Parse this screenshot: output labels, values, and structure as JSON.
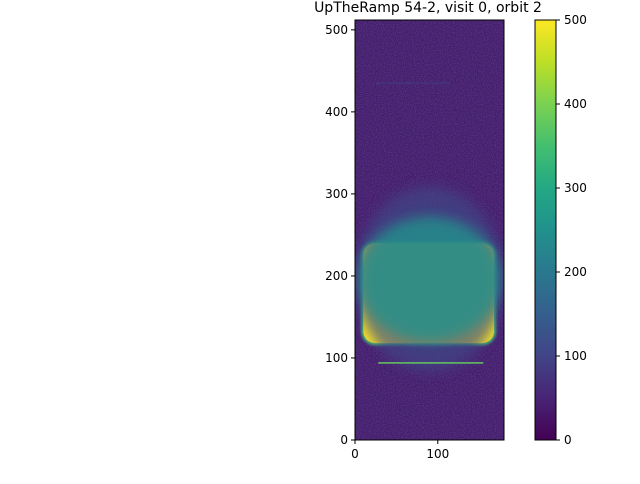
{
  "chart_data": {
    "type": "heatmap",
    "title": "UpTheRamp 54-2, visit 0, orbit 2",
    "xlabel": "",
    "ylabel": "",
    "xlim": [
      0,
      180
    ],
    "ylim": [
      0,
      512
    ],
    "x_ticks": [
      0,
      100
    ],
    "y_ticks": [
      0,
      100,
      200,
      300,
      400,
      500
    ],
    "grid": false,
    "colormap": "viridis",
    "colorbar": {
      "range": [
        0,
        500
      ],
      "ticks": [
        0,
        100,
        200,
        300,
        400,
        500
      ]
    },
    "background_level": 40,
    "features": [
      {
        "name": "saturated spectral trace",
        "x_range": [
          10,
          168
        ],
        "y_range": [
          118,
          240
        ],
        "value": 500
      },
      {
        "name": "glow halo",
        "x_range": [
          0,
          180
        ],
        "y_range": [
          95,
          320
        ],
        "value": 110
      },
      {
        "name": "horizontal streak",
        "x_range": [
          28,
          155
        ],
        "y_range": [
          93,
          95
        ],
        "value": 380
      },
      {
        "name": "faint streak",
        "x_range": [
          25,
          115
        ],
        "y_range": [
          434,
          436
        ],
        "value": 75
      }
    ],
    "colors": {
      "viridis_0": "#440154",
      "viridis_125": "#3b528b",
      "viridis_250": "#21918c",
      "viridis_375": "#5ec962",
      "viridis_500": "#fde725"
    }
  }
}
